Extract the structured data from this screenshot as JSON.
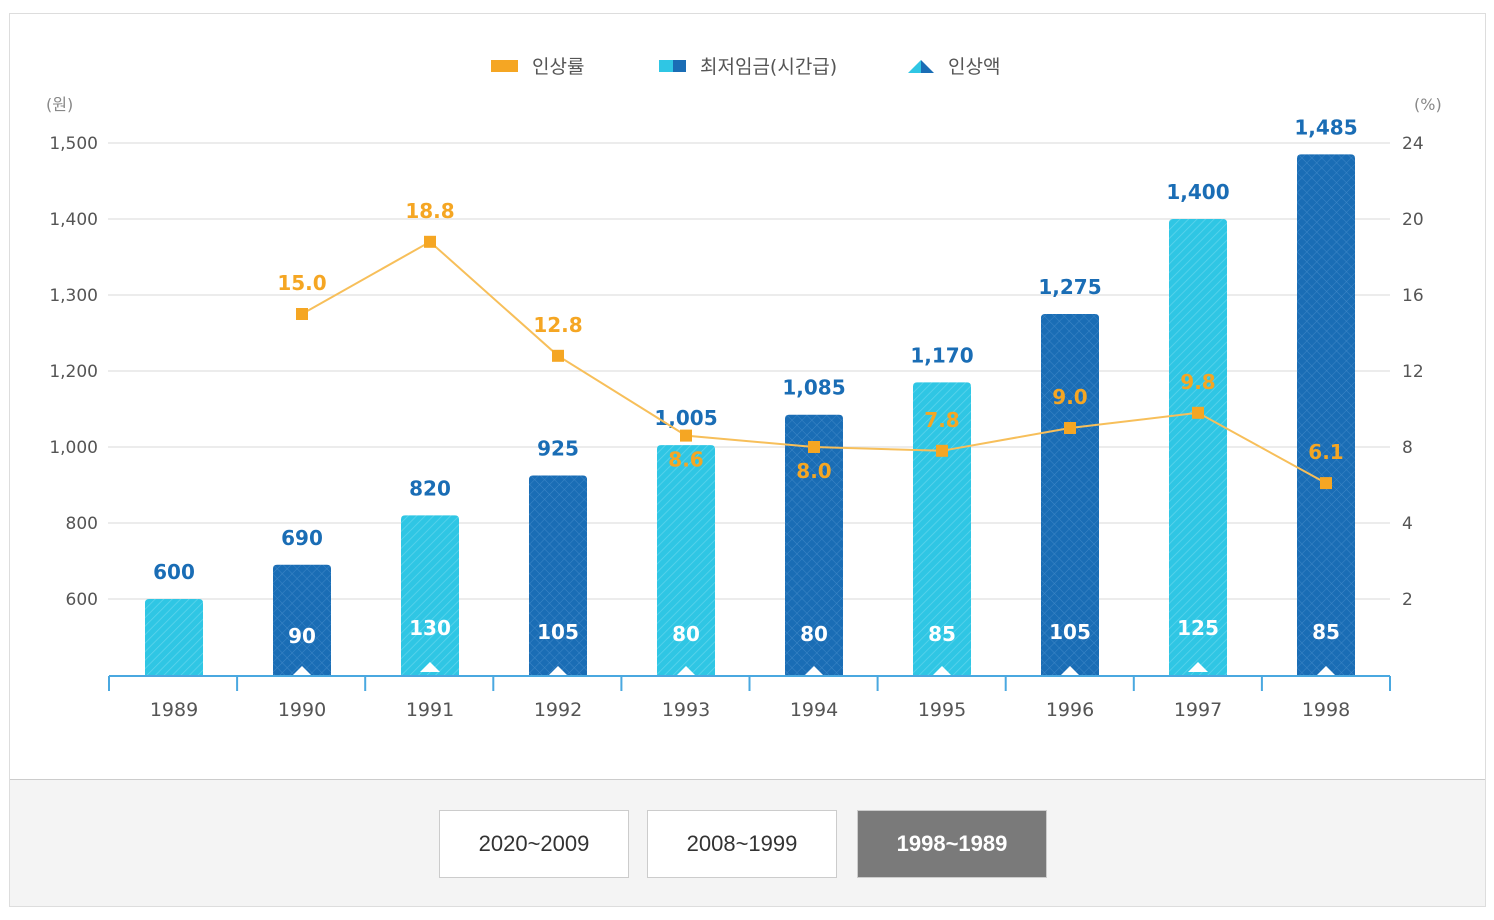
{
  "chart_data": {
    "type": "bar",
    "categories": [
      "1989",
      "1990",
      "1991",
      "1992",
      "1993",
      "1994",
      "1995",
      "1996",
      "1997",
      "1998"
    ],
    "series": [
      {
        "name": "최저임금(시간급)",
        "type": "bar",
        "axis": "left",
        "values": [
          600,
          690,
          820,
          925,
          1005,
          1085,
          1170,
          1275,
          1400,
          1485
        ],
        "labels": [
          "600",
          "690",
          "820",
          "925",
          "1,005",
          "1,085",
          "1,170",
          "1,275",
          "1,400",
          "1,485"
        ]
      },
      {
        "name": "인상액",
        "type": "label",
        "values": [
          null,
          90,
          130,
          105,
          80,
          80,
          85,
          105,
          125,
          85
        ]
      },
      {
        "name": "인상률",
        "type": "line",
        "axis": "right",
        "values": [
          null,
          15.0,
          18.8,
          12.8,
          8.6,
          8.0,
          7.8,
          9.0,
          9.8,
          6.1
        ]
      }
    ],
    "left_axis": {
      "unit_label": "(원)",
      "ticks": [
        600,
        800,
        1000,
        1200,
        1300,
        1400,
        1500
      ],
      "tick_labels": [
        "600",
        "800",
        "1,000",
        "1,200",
        "1,300",
        "1,400",
        "1,500"
      ]
    },
    "right_axis": {
      "unit_label": "(%)",
      "ticks": [
        2,
        4,
        8,
        12,
        16,
        20,
        24
      ],
      "tick_labels": [
        "2",
        "4",
        "8",
        "12",
        "16",
        "20",
        "24"
      ]
    },
    "legend": {
      "placement": "top",
      "items": [
        "인상률",
        "최저임금(시간급)",
        "인상액"
      ]
    },
    "grid": true,
    "colors": {
      "bar_light": "#2fc6e4",
      "bar_dark": "#1a6db5",
      "line": "#f5a623",
      "bar_label": "#1a6db5",
      "axis": "#4aa8e0"
    }
  },
  "footer": {
    "buttons": [
      {
        "label": "2020~2009",
        "active": false
      },
      {
        "label": "2008~1999",
        "active": false
      },
      {
        "label": "1998~1989",
        "active": true
      }
    ]
  }
}
